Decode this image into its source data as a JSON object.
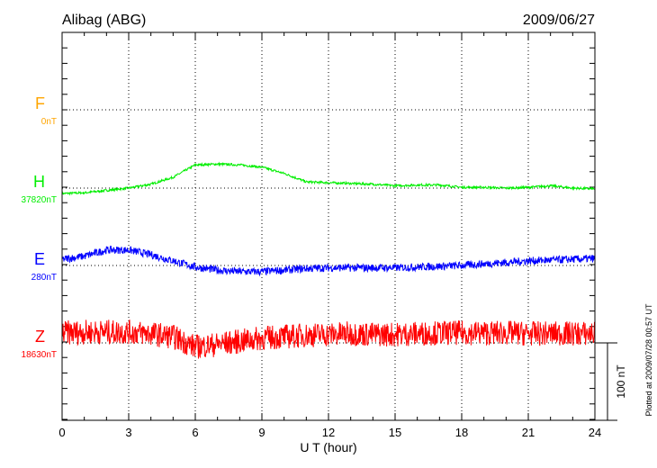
{
  "chart_data": {
    "type": "line",
    "title": "Alibag (ABG)",
    "date": "2009/06/27",
    "xlabel": "U T (hour)",
    "xlim": [
      0,
      24
    ],
    "xticks": [
      "0",
      "3",
      "6",
      "9",
      "12",
      "15",
      "18",
      "21",
      "24"
    ],
    "scale_label": "100 nT",
    "plotted_note": "Plotted at 2009/07/28 00:57 UT",
    "grid": true,
    "hours": [
      0,
      1,
      2,
      3,
      4,
      5,
      6,
      7,
      8,
      9,
      10,
      11,
      12,
      13,
      14,
      15,
      16,
      17,
      18,
      19,
      20,
      21,
      22,
      23,
      24
    ],
    "series": [
      {
        "name": "F",
        "baseline_label": "0nT",
        "color": "#ffa500",
        "values": [],
        "noise": 0
      },
      {
        "name": "H",
        "baseline_label": "37820nT",
        "color": "#00ee00",
        "values": [
          -7,
          -6,
          -3,
          0,
          5,
          14,
          30,
          31,
          30,
          27,
          19,
          8,
          7,
          6,
          5,
          3,
          4,
          4,
          1,
          1,
          0,
          1,
          3,
          0,
          -1
        ],
        "noise": 1.5
      },
      {
        "name": "E",
        "baseline_label": "280nT",
        "color": "#0000ff",
        "values": [
          8,
          12,
          20,
          20,
          14,
          6,
          -2,
          -6,
          -8,
          -8,
          -6,
          -4,
          -3,
          -3,
          -3,
          -3,
          -2,
          -1,
          0,
          2,
          4,
          6,
          7,
          8,
          9
        ],
        "noise": 5
      },
      {
        "name": "Z",
        "baseline_label": "18630nT",
        "color": "#ff0000",
        "values": [
          13,
          14,
          14,
          14,
          12,
          8,
          -5,
          -2,
          2,
          6,
          8,
          10,
          11,
          12,
          11,
          11,
          12,
          13,
          13,
          13,
          13,
          12,
          12,
          12,
          12
        ],
        "noise": 16
      }
    ]
  }
}
